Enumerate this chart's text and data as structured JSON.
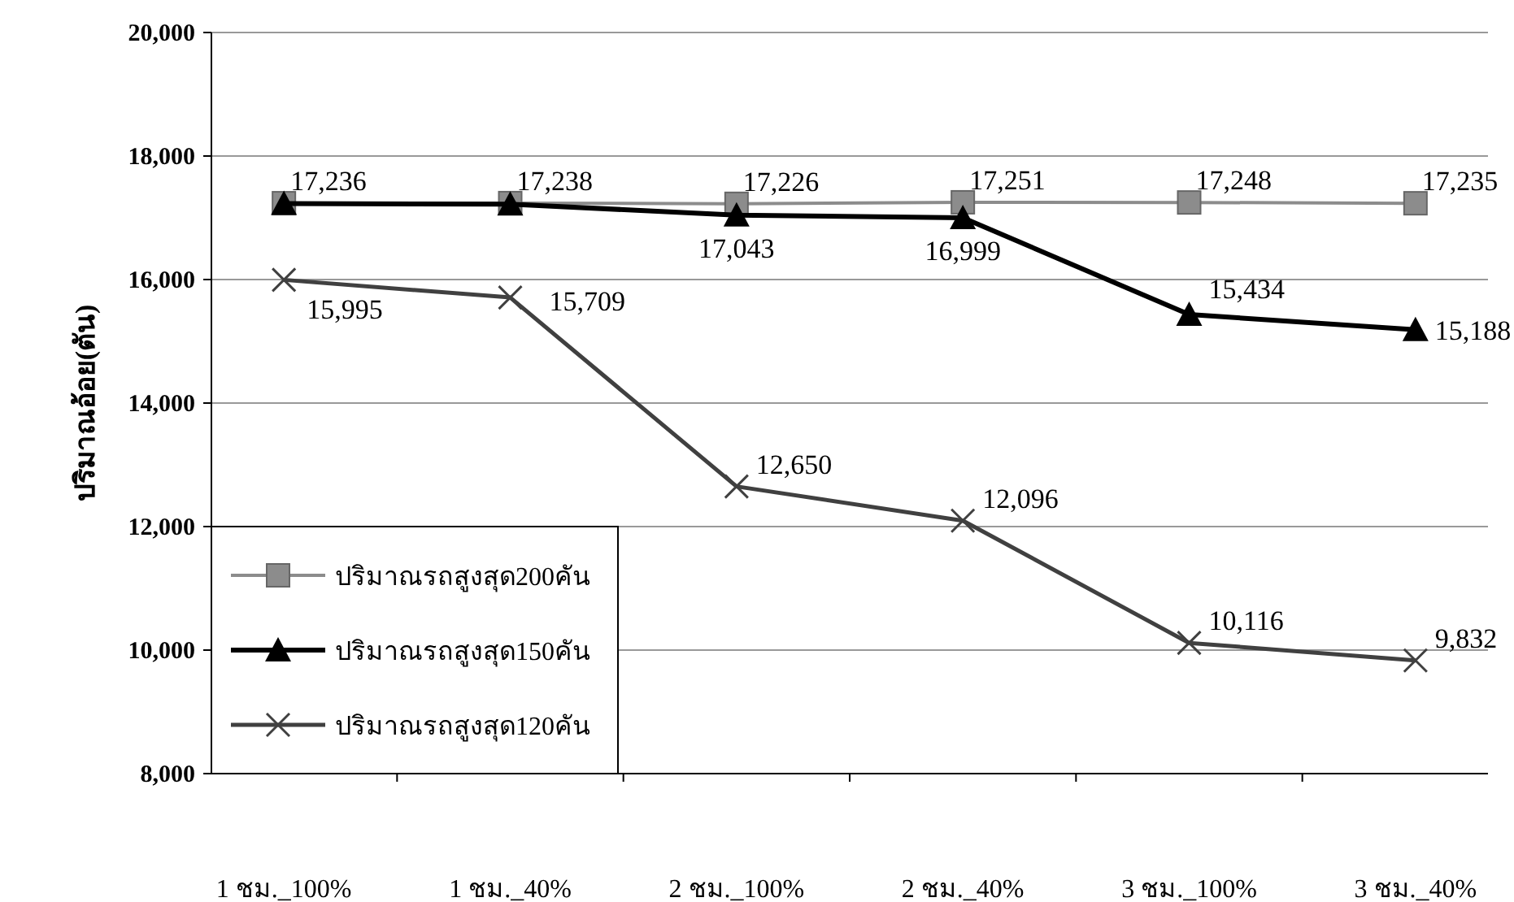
{
  "chart_data": {
    "type": "line",
    "ylabel": "ปริมาณอ้อย(ตัน)",
    "categories": [
      "1 ชม._100%",
      "1 ชม._40%",
      "2 ชม._100%",
      "2 ชม._40%",
      "3 ชม._100%",
      "3 ชม._40%"
    ],
    "ylim": [
      8000,
      20000
    ],
    "yticks": [
      {
        "value": 8000,
        "label": "8,000"
      },
      {
        "value": 10000,
        "label": "10,000"
      },
      {
        "value": 12000,
        "label": "12,000"
      },
      {
        "value": 14000,
        "label": "14,000"
      },
      {
        "value": 16000,
        "label": "16,000"
      },
      {
        "value": 18000,
        "label": "18,000"
      },
      {
        "value": 20000,
        "label": "20,000"
      }
    ],
    "grid": "y",
    "legend": "bottom left",
    "series": [
      {
        "name": "ปริมาณรถสูงสุด200คัน",
        "color": "#8c8c8c",
        "marker": "square",
        "values": [
          17236,
          17238,
          17226,
          17251,
          17248,
          17235
        ],
        "value_labels": [
          "17,236",
          "17,238",
          "17,226",
          "17,251",
          "17,248",
          "17,235"
        ]
      },
      {
        "name": "ปริมาณรถสูงสุด150คัน",
        "color": "#000000",
        "marker": "triangle",
        "values": [
          17230,
          17220,
          17043,
          16999,
          15434,
          15188
        ],
        "value_labels": [
          null,
          null,
          "17,043",
          "16,999",
          "15,434",
          "15,188"
        ]
      },
      {
        "name": "ปริมาณรถสูงสุด120คัน",
        "color": "#404040",
        "marker": "cross",
        "values": [
          15995,
          15709,
          12650,
          12096,
          10116,
          9832
        ],
        "value_labels": [
          "15,995",
          "15,709",
          "12,650",
          "12,096",
          "10,116",
          "9,832"
        ]
      }
    ]
  }
}
